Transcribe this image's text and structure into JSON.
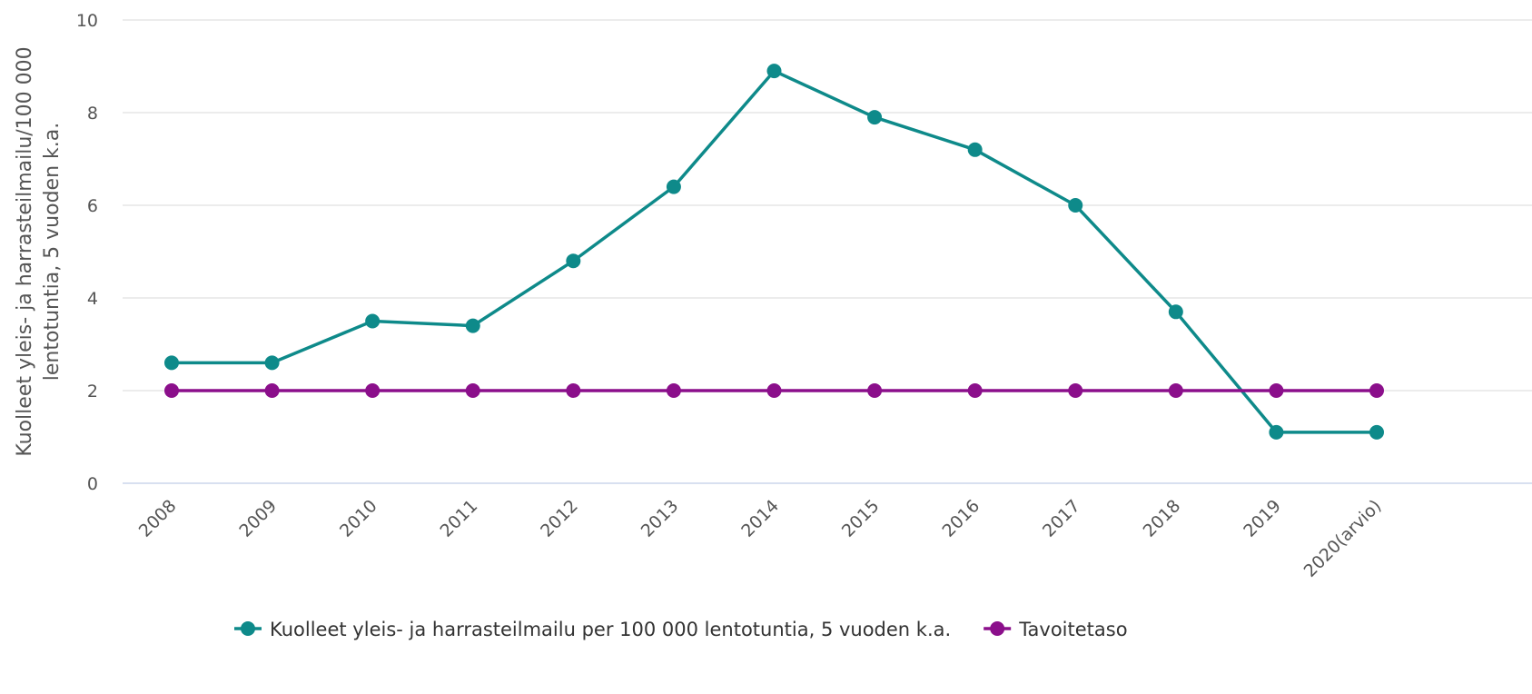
{
  "chart_data": {
    "type": "line",
    "ylabel": [
      "Kuolleet yleis- ja harrasteilmailu/100 000",
      "lentotuntia, 5 vuoden k.a."
    ],
    "categories": [
      "2008",
      "2009",
      "2010",
      "2011",
      "2012",
      "2013",
      "2014",
      "2015",
      "2016",
      "2017",
      "2018",
      "2019",
      "2020(arvio)"
    ],
    "series": [
      {
        "name": "Kuolleet yleis- ja harrasteilmailu per 100 000 lentotuntia, 5 vuoden k.a.",
        "color": "#0e8a8a",
        "values": [
          2.6,
          2.6,
          3.5,
          3.4,
          4.8,
          6.4,
          8.9,
          7.9,
          7.2,
          6.0,
          3.7,
          1.1,
          1.1
        ]
      },
      {
        "name": "Tavoitetaso",
        "color": "#8b0f8b",
        "values": [
          2,
          2,
          2,
          2,
          2,
          2,
          2,
          2,
          2,
          2,
          2,
          2,
          2
        ]
      }
    ],
    "ylim": [
      0,
      10
    ],
    "yticks": [
      0,
      2,
      4,
      6,
      8,
      10
    ],
    "grid": true,
    "legend": "bottom"
  }
}
